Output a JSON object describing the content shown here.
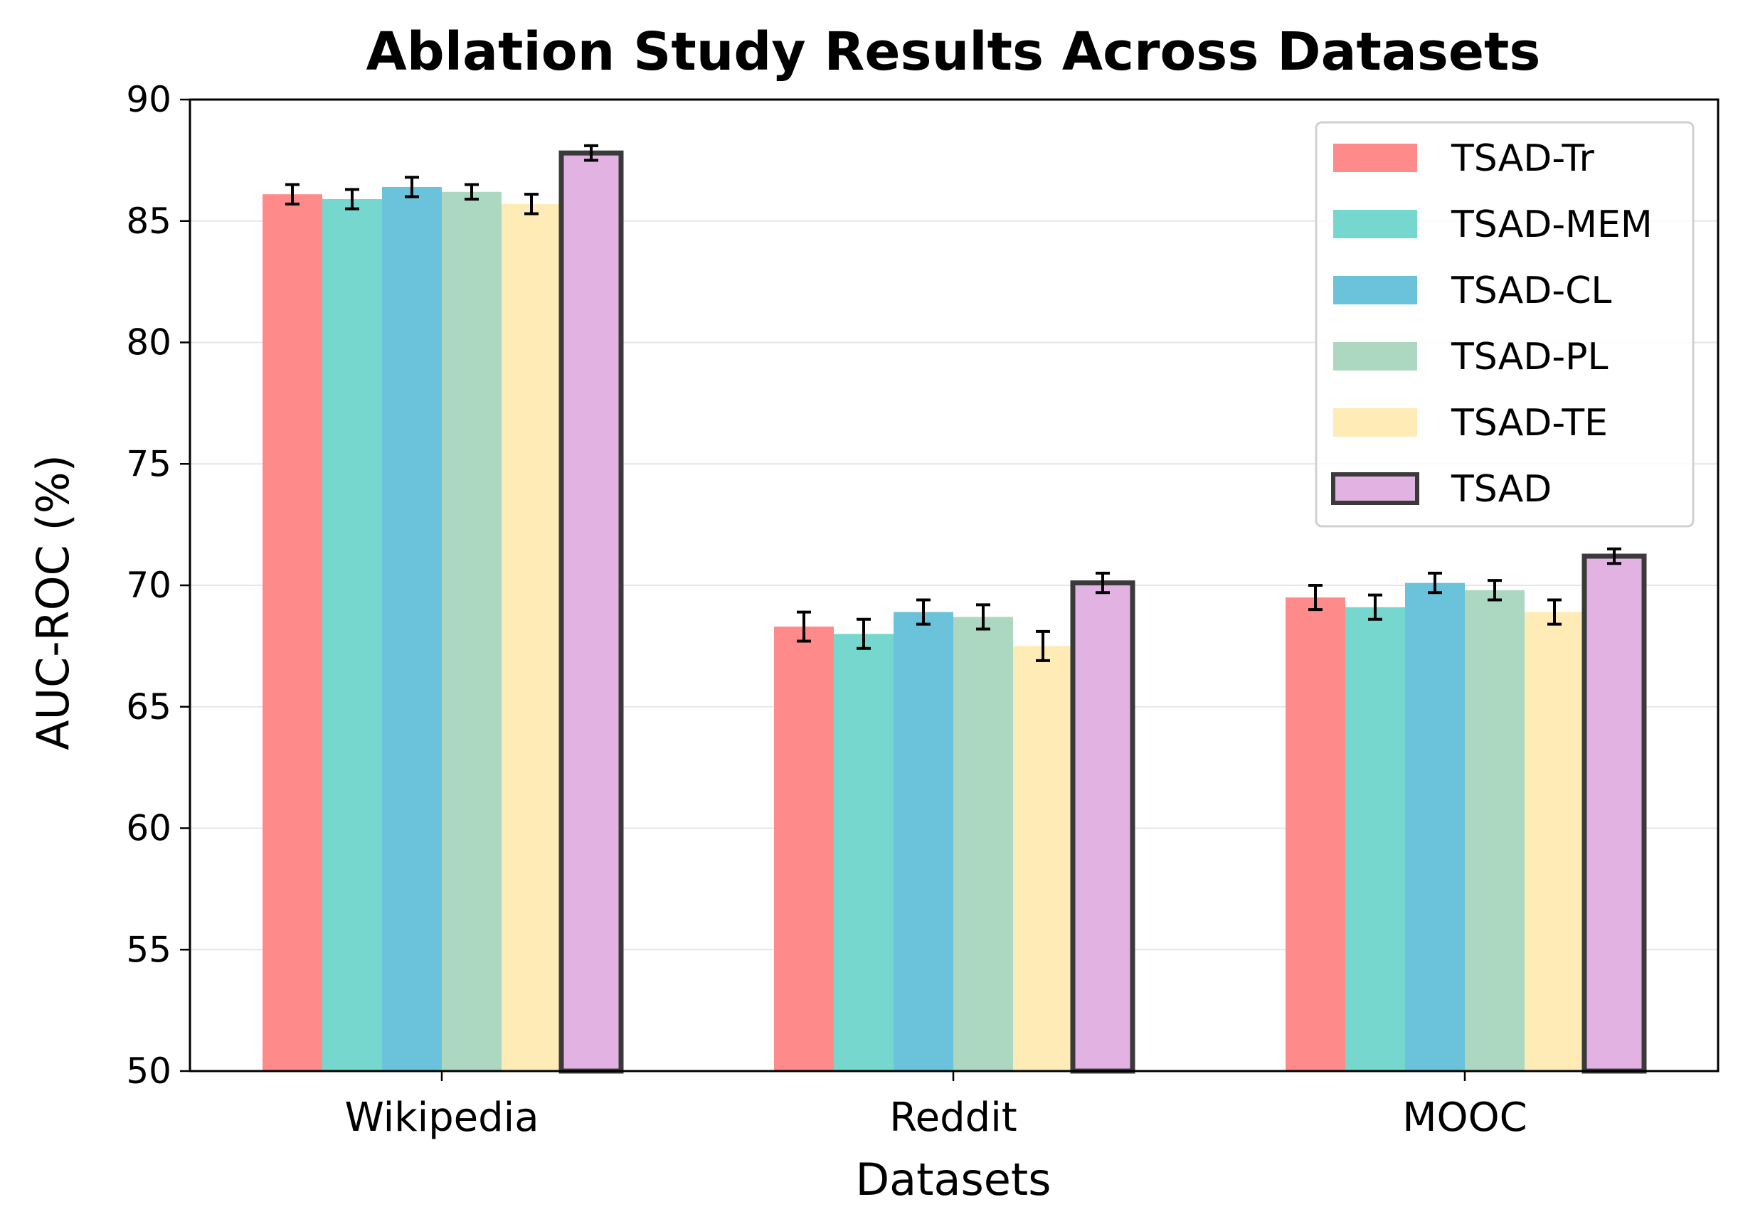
{
  "chart_data": {
    "type": "bar",
    "title": "Ablation Study Results Across Datasets",
    "xlabel": "Datasets",
    "ylabel": "AUC-ROC (%)",
    "ylim": [
      50,
      90
    ],
    "yticks": [
      50,
      55,
      60,
      65,
      70,
      75,
      80,
      85,
      90
    ],
    "grid": "horizontal",
    "legend_position": "top-right",
    "categories": [
      "Wikipedia",
      "Reddit",
      "MOOC"
    ],
    "series": [
      {
        "name": "TSAD-Tr",
        "color": "#ff8a8a",
        "values": [
          86.1,
          68.3,
          69.5
        ],
        "errors": [
          0.4,
          0.6,
          0.5
        ],
        "highlight": false
      },
      {
        "name": "TSAD-MEM",
        "color": "#76d7cf",
        "values": [
          85.9,
          68.0,
          69.1
        ],
        "errors": [
          0.4,
          0.6,
          0.5
        ],
        "highlight": false
      },
      {
        "name": "TSAD-CL",
        "color": "#6ac3da",
        "values": [
          86.4,
          68.9,
          70.1
        ],
        "errors": [
          0.4,
          0.5,
          0.4
        ],
        "highlight": false
      },
      {
        "name": "TSAD-PL",
        "color": "#acd8c2",
        "values": [
          86.2,
          68.7,
          69.8
        ],
        "errors": [
          0.3,
          0.5,
          0.4
        ],
        "highlight": false
      },
      {
        "name": "TSAD-TE",
        "color": "#ffebb5",
        "values": [
          85.7,
          67.5,
          68.9
        ],
        "errors": [
          0.4,
          0.6,
          0.5
        ],
        "highlight": false
      },
      {
        "name": "TSAD",
        "color": "#e2b2e2",
        "values": [
          87.8,
          70.1,
          71.2
        ],
        "errors": [
          0.3,
          0.4,
          0.3
        ],
        "highlight": true
      }
    ]
  }
}
